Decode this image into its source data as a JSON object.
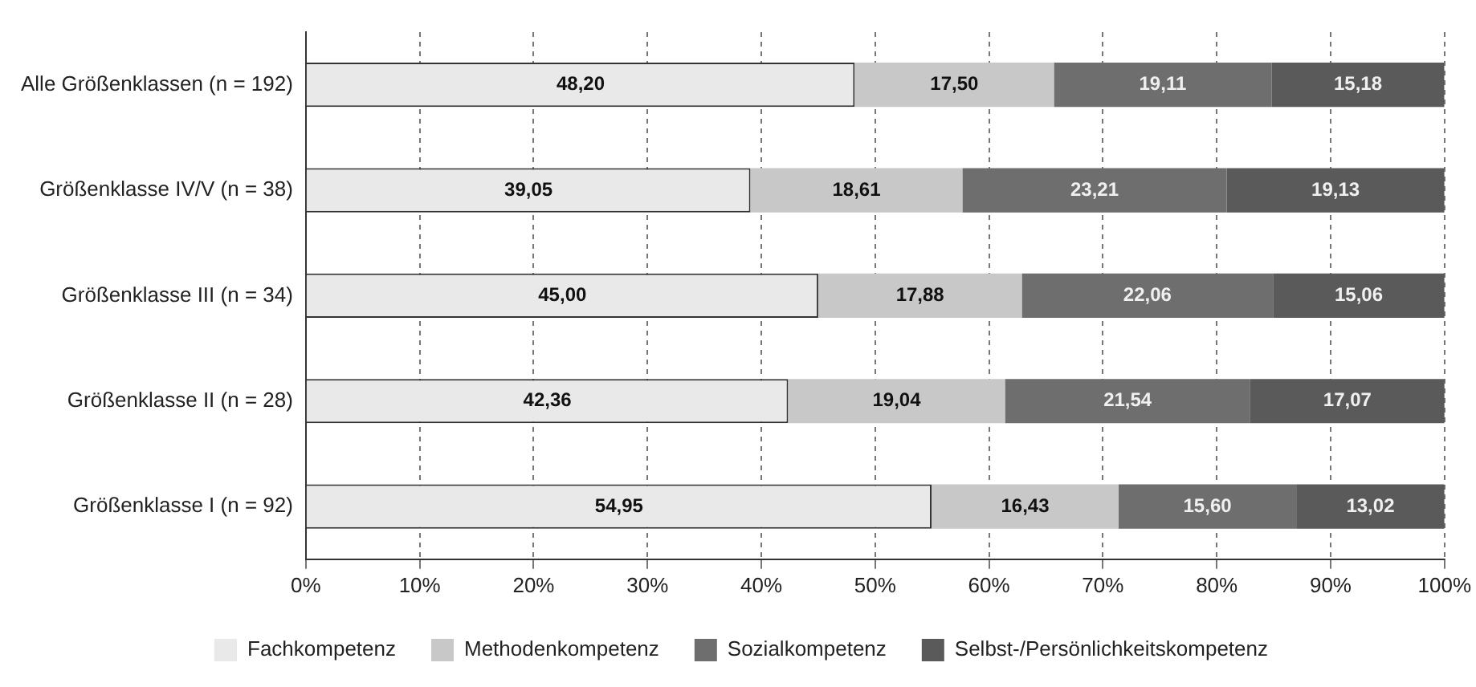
{
  "chart_data": {
    "type": "bar",
    "orientation": "horizontal",
    "stacked": true,
    "categories": [
      "Alle Größenklassen (n = 192)",
      "Größenklasse IV/V (n = 38)",
      "Größenklasse III (n = 34)",
      "Größenklasse II (n = 28)",
      "Größenklasse I (n = 92)"
    ],
    "series": [
      {
        "name": "Fachkompetenz",
        "color": "#e9e9e9",
        "values": [
          48.2,
          39.05,
          45,
          42.36,
          54.95
        ],
        "value_labels": [
          "48,20",
          "39,05",
          "45,00",
          "42,36",
          "54,95"
        ]
      },
      {
        "name": "Methodenkompetenz",
        "color": "#c8c8c8",
        "values": [
          17.5,
          18.61,
          17.88,
          19.04,
          16.43
        ],
        "value_labels": [
          "17,50",
          "18,61",
          "17,88",
          "19,04",
          "16,43"
        ]
      },
      {
        "name": "Sozialkompetenz",
        "color": "#6e6e6e",
        "values": [
          19.11,
          23.21,
          22.06,
          21.54,
          15.6
        ],
        "value_labels": [
          "19,11",
          "23,21",
          "22,06",
          "21,54",
          "15,60"
        ]
      },
      {
        "name": "Selbst-/Persönlichkeitskompetenz",
        "color": "#5a5a5a",
        "values": [
          15.18,
          19.13,
          15.06,
          17.07,
          13.02
        ],
        "value_labels": [
          "15,18",
          "19,13",
          "15,06",
          "17,07",
          "13,02"
        ]
      }
    ],
    "xlim": [
      0,
      100
    ],
    "xticks": [
      {
        "value": 0,
        "label": "0%"
      },
      {
        "value": 10,
        "label": "10%"
      },
      {
        "value": 20,
        "label": "20%"
      },
      {
        "value": 30,
        "label": "30%"
      },
      {
        "value": 40,
        "label": "40%"
      },
      {
        "value": 50,
        "label": "50%"
      },
      {
        "value": 60,
        "label": "60%"
      },
      {
        "value": 70,
        "label": "70%"
      },
      {
        "value": 80,
        "label": "80%"
      },
      {
        "value": 90,
        "label": "90%"
      },
      {
        "value": 100,
        "label": "100%"
      }
    ],
    "grid": "x",
    "legend": "bottom"
  }
}
